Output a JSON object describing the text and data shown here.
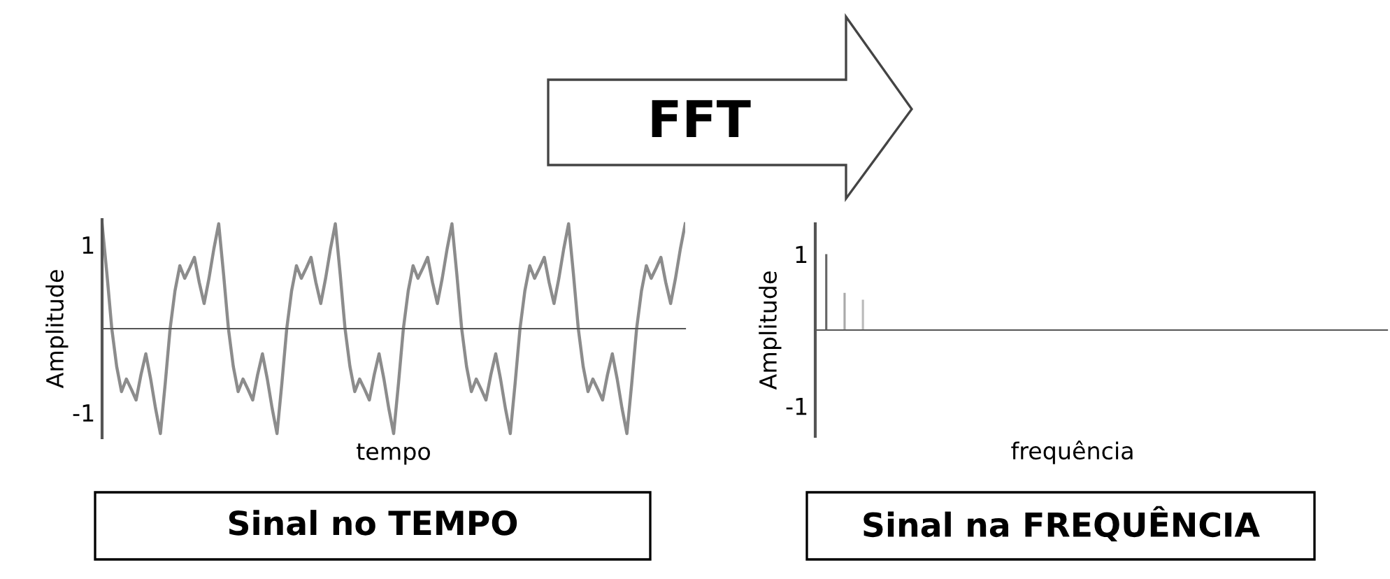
{
  "chart_data": [
    {
      "type": "line",
      "ylabel": "Amplitude",
      "xlabel": "tempo",
      "annotations": [
        "FFT",
        "Sinal no TEMPO"
      ],
      "ylim": [
        -1.3,
        1.3
      ],
      "yticks": [
        1,
        -1
      ],
      "tick_labels": "y",
      "grid": false,
      "legend": false,
      "categories": [
        null,
        null,
        null,
        null,
        null,
        null,
        null,
        null,
        null,
        null,
        null,
        null,
        null,
        null,
        null,
        null,
        null,
        null,
        null,
        null,
        null,
        null,
        null,
        null,
        null,
        null,
        null,
        null,
        null,
        null,
        null,
        null,
        null,
        null,
        null,
        null,
        null,
        null,
        null,
        null,
        null,
        null,
        null,
        null,
        null,
        null,
        null,
        null,
        null,
        null,
        null,
        null,
        null,
        null,
        null,
        null,
        null,
        null,
        null,
        null,
        null,
        null,
        null,
        null,
        null,
        null,
        null,
        null,
        null,
        null,
        null,
        null,
        null,
        null,
        null,
        null,
        null,
        null,
        null,
        null,
        null,
        null,
        null,
        null,
        null,
        null,
        null,
        null,
        null,
        null,
        null,
        null,
        null,
        null,
        null,
        null,
        null,
        null,
        null,
        null,
        null,
        null,
        null,
        null,
        null,
        null,
        null,
        null,
        null,
        null,
        null,
        null,
        null,
        null,
        null,
        null,
        null,
        null,
        null,
        null,
        null
      ],
      "series": [
        {
          "color": "#8c8c8c",
          "values": [
            1.25,
            0.65,
            0,
            -0.45,
            -0.75,
            -0.6,
            -0.72,
            -0.85,
            -0.55,
            -0.3,
            -0.6,
            -0.95,
            -1.25,
            -0.65,
            0,
            0.45,
            0.75,
            0.6,
            0.72,
            0.85,
            0.55,
            0.3,
            0.6,
            0.95,
            1.25,
            0.65,
            0,
            -0.45,
            -0.75,
            -0.6,
            -0.72,
            -0.85,
            -0.55,
            -0.3,
            -0.6,
            -0.95,
            -1.25,
            -0.65,
            0,
            0.45,
            0.75,
            0.6,
            0.72,
            0.85,
            0.55,
            0.3,
            0.6,
            0.95,
            1.25,
            0.65,
            0,
            -0.45,
            -0.75,
            -0.6,
            -0.72,
            -0.85,
            -0.55,
            -0.3,
            -0.6,
            -0.95,
            -1.25,
            -0.65,
            0,
            0.45,
            0.75,
            0.6,
            0.72,
            0.85,
            0.55,
            0.3,
            0.6,
            0.95,
            1.25,
            0.65,
            0,
            -0.45,
            -0.75,
            -0.6,
            -0.72,
            -0.85,
            -0.55,
            -0.3,
            -0.6,
            -0.95,
            -1.25,
            -0.65,
            0,
            0.45,
            0.75,
            0.6,
            0.72,
            0.85,
            0.55,
            0.3,
            0.6,
            0.95,
            1.25,
            0.65,
            0,
            -0.45,
            -0.75,
            -0.6,
            -0.72,
            -0.85,
            -0.55,
            -0.3,
            -0.6,
            -0.95,
            -1.25,
            -0.65,
            0,
            0.45,
            0.75,
            0.6,
            0.72,
            0.85,
            0.55,
            0.3,
            0.6,
            0.95,
            1.25
          ]
        }
      ]
    },
    {
      "type": "bar",
      "ylabel": "Amplitude",
      "xlabel": "frequência",
      "annotations": [
        "Sinal na FREQUÊNCIA"
      ],
      "ylim": [
        -1.4,
        1.4
      ],
      "yticks": [
        1,
        -1
      ],
      "tick_labels": "y",
      "grid": false,
      "legend": false,
      "categories": [
        null,
        null,
        null,
        null,
        null,
        null,
        null,
        null,
        null,
        null,
        null,
        null,
        null,
        null,
        null,
        null,
        null,
        null,
        null,
        null,
        null,
        null,
        null,
        null,
        null,
        null,
        null,
        null,
        null,
        null,
        null
      ],
      "values": [
        1,
        0.49,
        0.4,
        0,
        0,
        0,
        0,
        0,
        0,
        0,
        0,
        0,
        0,
        0,
        0,
        0,
        0,
        0,
        0,
        0,
        0,
        0,
        0,
        0,
        0,
        0,
        0,
        0,
        0,
        0,
        0
      ],
      "colors": [
        "#666666",
        "#aaaaaa",
        "#bbbbbb",
        "#bbbbbb",
        "#bbbbbb",
        "#bbbbbb",
        "#bbbbbb",
        "#bbbbbb",
        "#bbbbbb",
        "#bbbbbb",
        "#bbbbbb",
        "#bbbbbb",
        "#bbbbbb",
        "#bbbbbb",
        "#bbbbbb",
        "#bbbbbb",
        "#bbbbbb",
        "#bbbbbb",
        "#bbbbbb",
        "#bbbbbb",
        "#bbbbbb",
        "#bbbbbb",
        "#bbbbbb",
        "#bbbbbb",
        "#bbbbbb",
        "#bbbbbb",
        "#bbbbbb",
        "#bbbbbb",
        "#bbbbbb",
        "#bbbbbb",
        "#bbbbbb"
      ]
    }
  ]
}
